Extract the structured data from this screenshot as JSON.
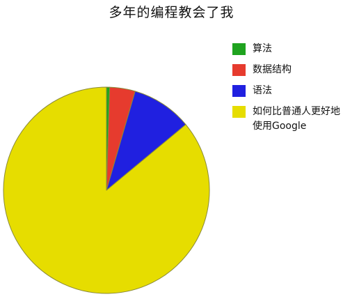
{
  "chart_data": {
    "type": "pie",
    "title": "多年的编程教会了我",
    "categories": [
      "算法",
      "数据结构",
      "语法",
      "如何比普通人更好地使用Google"
    ],
    "values": [
      0.5,
      4,
      9.5,
      86
    ],
    "colors": [
      "#1fa31f",
      "#e63b2e",
      "#2020e0",
      "#e6dd00"
    ],
    "slice_order": [
      "算法",
      "数据结构",
      "语法",
      "如何比普通人更好地使用Google"
    ],
    "start": "top",
    "direction": "clockwise",
    "legend_position": "right"
  }
}
